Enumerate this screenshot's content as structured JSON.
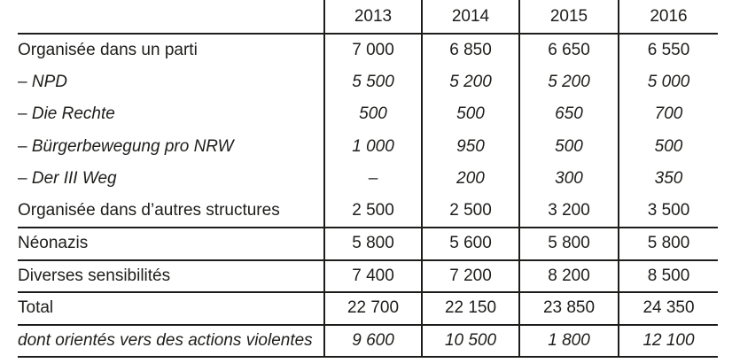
{
  "colors": {
    "background": "#ffffff",
    "text": "#1d1d1b",
    "rule_lines": "#1d1d1b"
  },
  "table": {
    "corner_label": "",
    "year_headers": [
      "2013",
      "2014",
      "2015",
      "2016"
    ],
    "rows": [
      {
        "label": "Organisée dans un parti",
        "italic": false,
        "rule_above": false,
        "values": [
          "7 000",
          "6 850",
          "6 650",
          "6 550"
        ]
      },
      {
        "label": "– NPD",
        "italic": true,
        "rule_above": false,
        "values": [
          "5 500",
          "5 200",
          "5 200",
          "5 000"
        ]
      },
      {
        "label": "– Die Rechte",
        "italic": true,
        "rule_above": false,
        "values": [
          "500",
          "500",
          "650",
          "700"
        ]
      },
      {
        "label": "– Bürgerbewegung pro NRW",
        "italic": true,
        "rule_above": false,
        "values": [
          "1 000",
          "950",
          "500",
          "500"
        ]
      },
      {
        "label": "– Der III Weg",
        "italic": true,
        "rule_above": false,
        "values": [
          "–",
          "200",
          "300",
          "350"
        ]
      },
      {
        "label": "Organisée dans d’autres structures",
        "italic": false,
        "rule_above": false,
        "values": [
          "2 500",
          "2 500",
          "3 200",
          "3 500"
        ]
      },
      {
        "label": "Néonazis",
        "italic": false,
        "rule_above": true,
        "values": [
          "5 800",
          "5 600",
          "5 800",
          "5 800"
        ]
      },
      {
        "label": "Diverses sensibilités",
        "italic": false,
        "rule_above": true,
        "values": [
          "7 400",
          "7 200",
          "8 200",
          "8 500"
        ]
      },
      {
        "label": "Total",
        "italic": false,
        "rule_above": true,
        "values": [
          "22 700",
          "22 150",
          "23 850",
          "24 350"
        ]
      },
      {
        "label": "dont orientés vers des actions violentes",
        "italic": true,
        "rule_above": true,
        "values": [
          "9 600",
          "10 500",
          "1 800",
          "12 100"
        ]
      }
    ]
  }
}
